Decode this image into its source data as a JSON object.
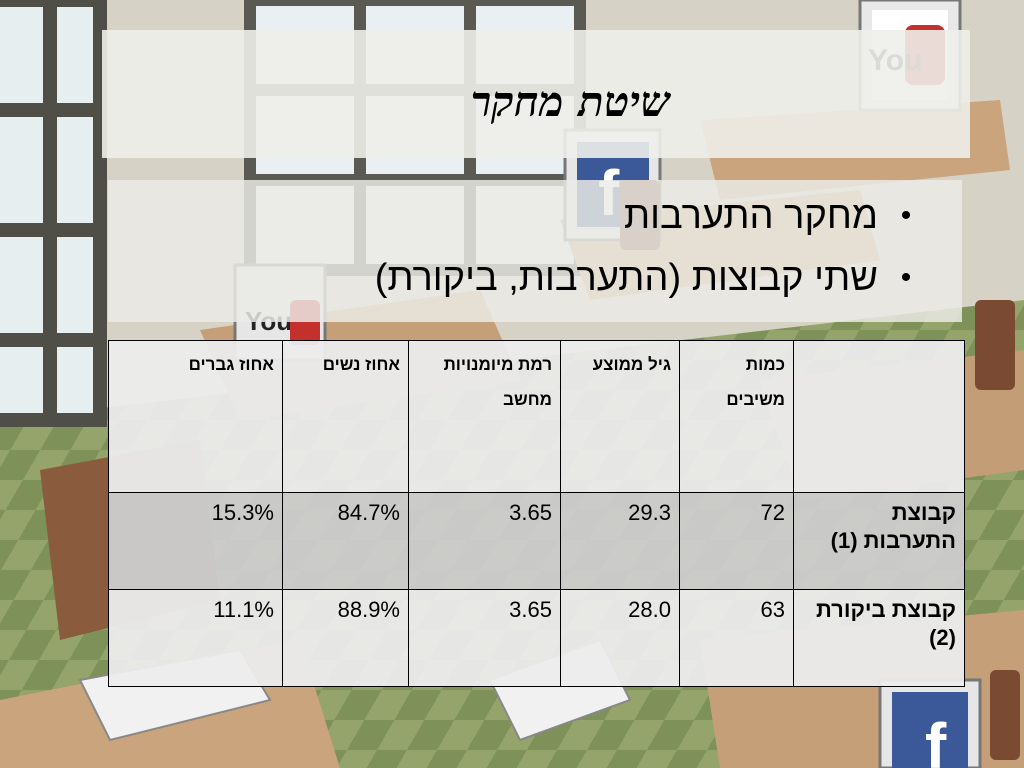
{
  "slide": {
    "title": "שיטת מחקר",
    "bullets": [
      {
        "marker": "•",
        "text": "מחקר התערבות"
      },
      {
        "marker": "•",
        "text": "שתי קבוצות (התערבות, ביקורת)"
      }
    ]
  },
  "table": {
    "headers": [
      "",
      "כמות משיבים",
      "גיל ממוצע",
      "רמת מיומנויות מחשב",
      "אחוז נשים",
      "אחוז גברים"
    ],
    "rows": [
      {
        "label": "קבוצת התערבות (1)",
        "respondents": "72",
        "avg_age": "29.3",
        "computer_skill": "3.65",
        "women_pct": "84.7%",
        "men_pct": "15.3%"
      },
      {
        "label": "קבוצת ביקורת (2)",
        "respondents": "63",
        "avg_age": "28.0",
        "computer_skill": "3.65",
        "women_pct": "88.9%",
        "men_pct": "11.1%"
      }
    ]
  },
  "background": {
    "logos": [
      "YouTube",
      "f",
      "f",
      "YouTube",
      "f"
    ],
    "colors": {
      "wall": "#d8d5c8",
      "floor": "#7a8f4a",
      "desk": "#c9a27a",
      "window_frame": "#5a5a52",
      "facebook_blue": "#3b5998",
      "youtube_red": "#c4302b"
    }
  }
}
